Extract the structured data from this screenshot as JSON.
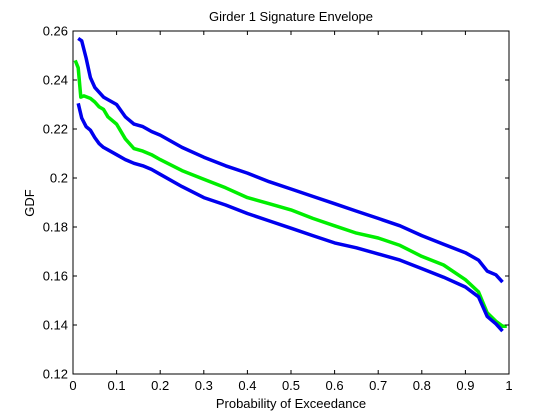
{
  "chart_data": {
    "type": "line",
    "title": "Girder 1 Signature Envelope",
    "xlabel": "Probability of Exceedance",
    "ylabel": "GDF",
    "xlim": [
      0,
      1
    ],
    "ylim": [
      0.12,
      0.26
    ],
    "grid": false,
    "xticks": [
      0,
      0.1,
      0.2,
      0.3,
      0.4,
      0.5,
      0.6,
      0.7,
      0.8,
      0.9,
      1
    ],
    "xtick_labels": [
      "0",
      "0.1",
      "0.2",
      "0.3",
      "0.4",
      "0.5",
      "0.6",
      "0.7",
      "0.8",
      "0.9",
      "1"
    ],
    "yticks": [
      0.12,
      0.14,
      0.16,
      0.18,
      0.2,
      0.22,
      0.24,
      0.26
    ],
    "ytick_labels": [
      "0.12",
      "0.14",
      "0.16",
      "0.18",
      "0.2",
      "0.22",
      "0.24",
      "0.26"
    ],
    "series": [
      {
        "color": "#0000ee",
        "x": [
          0.012,
          0.02,
          0.03,
          0.04,
          0.05,
          0.06,
          0.07,
          0.08,
          0.1,
          0.12,
          0.14,
          0.16,
          0.18,
          0.2,
          0.25,
          0.3,
          0.35,
          0.4,
          0.45,
          0.5,
          0.55,
          0.6,
          0.65,
          0.7,
          0.75,
          0.8,
          0.85,
          0.9,
          0.93,
          0.95,
          0.97,
          0.985
        ],
        "y": [
          0.257,
          0.256,
          0.249,
          0.241,
          0.237,
          0.235,
          0.233,
          0.232,
          0.23,
          0.225,
          0.222,
          0.221,
          0.219,
          0.2175,
          0.2125,
          0.2085,
          0.205,
          0.202,
          0.1985,
          0.1955,
          0.1925,
          0.1895,
          0.1865,
          0.1835,
          0.1805,
          0.1765,
          0.173,
          0.1695,
          0.1665,
          0.162,
          0.1605,
          0.1575
        ]
      },
      {
        "color": "#00ee00",
        "x": [
          0.005,
          0.012,
          0.018,
          0.025,
          0.04,
          0.05,
          0.06,
          0.07,
          0.08,
          0.1,
          0.12,
          0.14,
          0.16,
          0.18,
          0.2,
          0.25,
          0.3,
          0.35,
          0.4,
          0.45,
          0.5,
          0.55,
          0.6,
          0.65,
          0.7,
          0.75,
          0.8,
          0.85,
          0.9,
          0.93,
          0.95,
          0.97,
          0.985,
          0.995
        ],
        "y": [
          0.248,
          0.245,
          0.233,
          0.2335,
          0.2325,
          0.231,
          0.229,
          0.228,
          0.225,
          0.222,
          0.216,
          0.212,
          0.211,
          0.2095,
          0.2075,
          0.203,
          0.1995,
          0.196,
          0.192,
          0.1895,
          0.187,
          0.1835,
          0.1805,
          0.1775,
          0.1755,
          0.1725,
          0.168,
          0.1645,
          0.1585,
          0.1535,
          0.145,
          0.1415,
          0.1395,
          0.1395
        ]
      },
      {
        "color": "#0000ee",
        "x": [
          0.012,
          0.02,
          0.03,
          0.04,
          0.05,
          0.06,
          0.07,
          0.08,
          0.1,
          0.12,
          0.14,
          0.16,
          0.18,
          0.2,
          0.25,
          0.3,
          0.35,
          0.4,
          0.45,
          0.5,
          0.55,
          0.6,
          0.65,
          0.7,
          0.75,
          0.8,
          0.85,
          0.9,
          0.93,
          0.95,
          0.97,
          0.985
        ],
        "y": [
          0.2305,
          0.2245,
          0.221,
          0.2195,
          0.2165,
          0.214,
          0.2125,
          0.2115,
          0.2095,
          0.2075,
          0.206,
          0.205,
          0.2035,
          0.2015,
          0.1965,
          0.192,
          0.189,
          0.1855,
          0.1825,
          0.1795,
          0.1765,
          0.1735,
          0.1715,
          0.169,
          0.1665,
          0.163,
          0.1595,
          0.1555,
          0.1515,
          0.1435,
          0.1405,
          0.1375
        ]
      }
    ]
  }
}
